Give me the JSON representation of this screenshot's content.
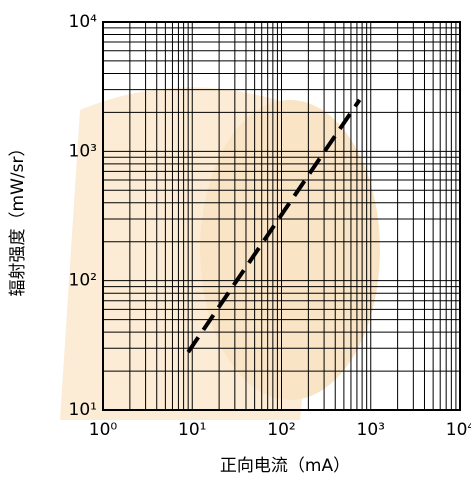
{
  "chart_data": {
    "type": "line",
    "x_label": "正向电流（mA）",
    "y_label": "辐射强度（mW/sr）",
    "log_x": true,
    "log_y": true,
    "grid": true,
    "xlim": [
      1,
      10000
    ],
    "ylim": [
      10,
      10000
    ],
    "xticks": [
      {
        "value": 1,
        "label": "10⁰"
      },
      {
        "value": 10,
        "label": "10¹"
      },
      {
        "value": 100,
        "label": "10²"
      },
      {
        "value": 1000,
        "label": "10³"
      },
      {
        "value": 10000,
        "label": "10⁴"
      }
    ],
    "yticks": [
      {
        "value": 10,
        "label": "10¹"
      },
      {
        "value": 100,
        "label": "10²"
      },
      {
        "value": 1000,
        "label": "10³"
      },
      {
        "value": 10000,
        "label": "10⁴"
      }
    ],
    "x": [
      9,
      750
    ],
    "series": [
      {
        "color": "#000000",
        "dashed": true,
        "values": [
          28,
          2500
        ]
      }
    ]
  }
}
